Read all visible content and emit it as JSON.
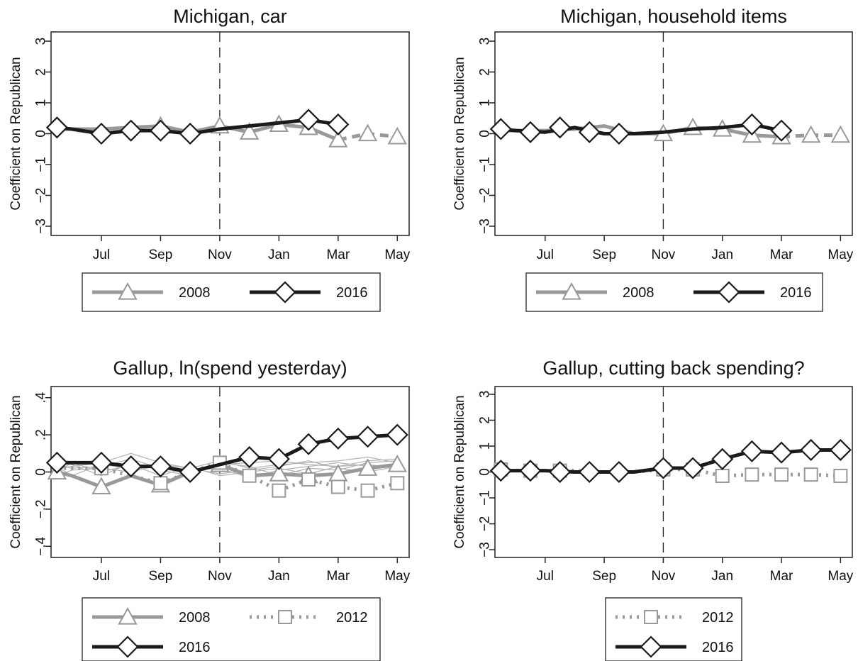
{
  "colors": {
    "gray": "#999999",
    "black": "#1a1a1a",
    "frame": "#222222",
    "faint": "#b3b3b3"
  },
  "chart_data": [
    {
      "type": "line",
      "title": "Michigan, car",
      "ylabel": "Coefficient on Republican",
      "x_tick_labels": [
        "Jul",
        "Sep",
        "Nov",
        "Jan",
        "Mar",
        "May"
      ],
      "x_ticks": [
        7,
        9,
        11,
        13,
        15,
        17
      ],
      "xlim": [
        5.3,
        17.4
      ],
      "y_ticks": [
        -3,
        -2,
        -1,
        0,
        1,
        2,
        3
      ],
      "y_tick_labels": [
        "−3",
        "−2",
        "−1",
        "0",
        "1",
        "2",
        "3"
      ],
      "ylim": [
        -3.3,
        3.3
      ],
      "election_line_x": 11,
      "series": [
        {
          "name": "2008",
          "style": "gray-triangle",
          "segments": [
            {
              "dashed": false,
              "x": [
                5.5,
                6,
                7,
                8,
                9,
                10,
                11,
                12,
                13,
                14,
                15
              ],
              "y": [
                0.15,
                0.15,
                0.15,
                0.2,
                0.25,
                0.05,
                0.25,
                0.05,
                0.3,
                0.2,
                -0.2
              ]
            },
            {
              "dashed": true,
              "x": [
                15,
                16,
                17
              ],
              "y": [
                -0.2,
                0.0,
                -0.1
              ]
            }
          ],
          "markers": {
            "x": [
              9,
              11,
              12,
              13,
              14,
              15,
              16,
              17
            ],
            "y": [
              0.25,
              0.25,
              0.05,
              0.3,
              0.2,
              -0.2,
              0.0,
              -0.1
            ]
          }
        },
        {
          "name": "2016",
          "style": "black-diamond",
          "segments": [
            {
              "dashed": false,
              "x": [
                5.5,
                6,
                7,
                8,
                9,
                10,
                11,
                12,
                13,
                14,
                15
              ],
              "y": [
                0.2,
                0.15,
                0.0,
                0.1,
                0.1,
                0.0,
                0.15,
                0.25,
                0.35,
                0.45,
                0.3
              ]
            }
          ],
          "markers": {
            "x": [
              5.5,
              7,
              8,
              9,
              10,
              14,
              15
            ],
            "y": [
              0.2,
              0.0,
              0.1,
              0.1,
              0.0,
              0.45,
              0.3
            ]
          }
        }
      ],
      "legend": [
        {
          "label": "2008",
          "style": "gray-triangle"
        },
        {
          "label": "2016",
          "style": "black-diamond"
        }
      ]
    },
    {
      "type": "line",
      "title": "Michigan, household items",
      "ylabel": "Coefficient on Republican",
      "x_tick_labels": [
        "Jul",
        "Sep",
        "Nov",
        "Jan",
        "Mar",
        "May"
      ],
      "x_ticks": [
        7,
        9,
        11,
        13,
        15,
        17
      ],
      "xlim": [
        5.3,
        17.4
      ],
      "y_ticks": [
        -3,
        -2,
        -1,
        0,
        1,
        2,
        3
      ],
      "y_tick_labels": [
        "−3",
        "−2",
        "−1",
        "0",
        "1",
        "2",
        "3"
      ],
      "ylim": [
        -3.3,
        3.3
      ],
      "election_line_x": 11,
      "series": [
        {
          "name": "2008",
          "style": "gray-triangle",
          "segments": [
            {
              "dashed": false,
              "x": [
                5.5,
                6,
                7,
                8,
                9,
                10,
                11,
                12,
                13,
                14,
                15
              ],
              "y": [
                0.1,
                0.1,
                0.1,
                0.15,
                0.25,
                0.0,
                0.0,
                0.2,
                0.15,
                -0.05,
                -0.1
              ]
            },
            {
              "dashed": true,
              "x": [
                15,
                16,
                17
              ],
              "y": [
                -0.1,
                -0.05,
                -0.05
              ]
            }
          ],
          "markers": {
            "x": [
              11,
              12,
              13,
              14,
              15,
              16,
              17
            ],
            "y": [
              0.0,
              0.2,
              0.15,
              -0.05,
              -0.1,
              -0.05,
              -0.05
            ]
          }
        },
        {
          "name": "2016",
          "style": "black-diamond",
          "segments": [
            {
              "dashed": false,
              "x": [
                5.5,
                6,
                7,
                8,
                9,
                10,
                11,
                12,
                13,
                14,
                15
              ],
              "y": [
                0.15,
                0.1,
                0.05,
                0.2,
                0.0,
                0.0,
                0.05,
                0.15,
                0.2,
                0.3,
                0.1
              ]
            }
          ],
          "markers": {
            "x": [
              5.5,
              6.5,
              7.5,
              8.5,
              9.5,
              14,
              15
            ],
            "y": [
              0.15,
              0.05,
              0.2,
              0.05,
              0.0,
              0.3,
              0.1
            ]
          }
        }
      ],
      "legend": [
        {
          "label": "2008",
          "style": "gray-triangle"
        },
        {
          "label": "2016",
          "style": "black-diamond"
        }
      ]
    },
    {
      "type": "line",
      "title": "Gallup, ln(spend yesterday)",
      "ylabel": "Coefficient on Republican",
      "x_tick_labels": [
        "Jul",
        "Sep",
        "Nov",
        "Jan",
        "Mar",
        "May"
      ],
      "x_ticks": [
        7,
        9,
        11,
        13,
        15,
        17
      ],
      "xlim": [
        5.3,
        17.4
      ],
      "y_ticks": [
        -0.4,
        -0.2,
        0,
        0.2,
        0.4
      ],
      "y_tick_labels": [
        "−.4",
        "−.2",
        "0",
        ".2",
        ".4"
      ],
      "ylim": [
        -0.46,
        0.46
      ],
      "election_line_x": 11,
      "background_lines": {
        "x": [
          5.5,
          6,
          7,
          8,
          9,
          10,
          11,
          12,
          13,
          14,
          15,
          16,
          17
        ],
        "ys": [
          [
            0.02,
            0.03,
            0.05,
            0.1,
            0.05,
            0.02,
            0.06,
            0.02,
            0.04,
            0.05,
            0.06,
            0.08,
            0.05
          ],
          [
            0.04,
            0.02,
            0.03,
            0.07,
            0.02,
            -0.01,
            0.04,
            0.05,
            0.06,
            0.04,
            0.03,
            0.06,
            0.07
          ],
          [
            0.0,
            0.05,
            0.0,
            0.04,
            -0.02,
            0.03,
            -0.02,
            0.0,
            0.02,
            -0.01,
            0.03,
            0.04,
            0.02
          ],
          [
            0.03,
            -0.02,
            0.04,
            0.02,
            0.03,
            0.01,
            0.02,
            -0.03,
            0.01,
            0.03,
            0.05,
            0.03,
            0.04
          ],
          [
            0.05,
            0.04,
            -0.02,
            0.05,
            0.01,
            -0.02,
            0.05,
            0.03,
            -0.02,
            0.02,
            0.01,
            0.05,
            0.06
          ],
          [
            -0.02,
            0.01,
            0.02,
            0.0,
            0.04,
            0.02,
            -0.01,
            0.01,
            0.03,
            0.06,
            0.02,
            0.0,
            0.03
          ]
        ]
      },
      "series": [
        {
          "name": "2008",
          "style": "gray-triangle",
          "segments": [
            {
              "dashed": false,
              "x": [
                5.5,
                6,
                7,
                8,
                9,
                10,
                11,
                12,
                13,
                14,
                15,
                16,
                17
              ],
              "y": [
                0.0,
                -0.02,
                -0.08,
                -0.02,
                -0.07,
                0.0,
                0.04,
                -0.02,
                -0.01,
                -0.02,
                -0.01,
                0.02,
                0.04
              ]
            }
          ],
          "markers": {
            "x": [
              5.5,
              7,
              9,
              11,
              13,
              14,
              15,
              16,
              17
            ],
            "y": [
              0.0,
              -0.08,
              -0.07,
              0.04,
              -0.01,
              -0.02,
              -0.01,
              0.02,
              0.04
            ]
          }
        },
        {
          "name": "2012",
          "style": "gray-square-dotted",
          "segments": [
            {
              "dashed": true,
              "x": [
                5.5,
                6,
                7,
                8,
                9,
                10,
                11,
                12,
                13,
                14,
                15,
                16,
                17
              ],
              "y": [
                0.02,
                0.02,
                0.02,
                -0.02,
                -0.06,
                0.0,
                0.05,
                -0.02,
                -0.1,
                -0.04,
                -0.08,
                -0.1,
                -0.06
              ]
            }
          ],
          "markers": {
            "x": [
              7,
              9,
              11,
              12,
              13,
              14,
              15,
              16,
              17
            ],
            "y": [
              0.02,
              -0.06,
              0.05,
              -0.02,
              -0.1,
              -0.04,
              -0.08,
              -0.1,
              -0.06
            ]
          }
        },
        {
          "name": "2016",
          "style": "black-diamond",
          "segments": [
            {
              "dashed": false,
              "x": [
                5.5,
                6,
                7,
                8,
                9,
                10,
                11,
                12,
                13,
                14,
                15,
                16,
                17
              ],
              "y": [
                0.05,
                0.05,
                0.05,
                0.03,
                0.03,
                0.0,
                0.04,
                0.08,
                0.07,
                0.15,
                0.18,
                0.19,
                0.2
              ]
            }
          ],
          "markers": {
            "x": [
              5.5,
              7,
              8,
              9,
              10,
              12,
              13,
              14,
              15,
              16,
              17
            ],
            "y": [
              0.05,
              0.05,
              0.03,
              0.03,
              0.0,
              0.08,
              0.07,
              0.15,
              0.18,
              0.19,
              0.2
            ]
          }
        }
      ],
      "legend": [
        {
          "label": "2008",
          "style": "gray-triangle"
        },
        {
          "label": "2012",
          "style": "gray-square-dotted"
        },
        {
          "label": "2016",
          "style": "black-diamond"
        }
      ]
    },
    {
      "type": "line",
      "title": "Gallup, cutting back spending?",
      "ylabel": "Coefficient on Republican",
      "x_tick_labels": [
        "Jul",
        "Sep",
        "Nov",
        "Jan",
        "Mar",
        "May"
      ],
      "x_ticks": [
        7,
        9,
        11,
        13,
        15,
        17
      ],
      "xlim": [
        5.3,
        17.4
      ],
      "y_ticks": [
        -3,
        -2,
        -1,
        0,
        1,
        2,
        3
      ],
      "y_tick_labels": [
        "−3",
        "−2",
        "−1",
        "0",
        "1",
        "2",
        "3"
      ],
      "ylim": [
        -3.3,
        3.3
      ],
      "election_line_x": 11,
      "series": [
        {
          "name": "2012",
          "style": "gray-square-dotted",
          "segments": [
            {
              "dashed": true,
              "x": [
                5.5,
                6,
                7,
                8,
                9,
                10,
                11,
                12,
                13,
                14,
                15,
                16,
                17
              ],
              "y": [
                0.1,
                0.05,
                0.05,
                0.05,
                0.0,
                0.0,
                0.1,
                0.1,
                -0.15,
                -0.1,
                -0.1,
                -0.1,
                -0.15
              ]
            }
          ],
          "markers": {
            "x": [
              5.5,
              6.5,
              7.5,
              11,
              12,
              13,
              14,
              15,
              16,
              17
            ],
            "y": [
              0.1,
              0.05,
              0.05,
              0.1,
              0.1,
              -0.15,
              -0.1,
              -0.1,
              -0.1,
              -0.15
            ]
          }
        },
        {
          "name": "2016",
          "style": "black-diamond",
          "segments": [
            {
              "dashed": false,
              "x": [
                5.5,
                6,
                7,
                8,
                9,
                10,
                11,
                12,
                13,
                14,
                15,
                16,
                17
              ],
              "y": [
                0.05,
                0.05,
                0.05,
                0.0,
                0.0,
                0.0,
                0.15,
                0.15,
                0.5,
                0.8,
                0.75,
                0.85,
                0.85
              ]
            }
          ],
          "markers": {
            "x": [
              5.5,
              6.5,
              7.5,
              8.5,
              9.5,
              11,
              12,
              13,
              14,
              15,
              16,
              17
            ],
            "y": [
              0.05,
              0.05,
              0.0,
              0.0,
              0.0,
              0.15,
              0.15,
              0.5,
              0.8,
              0.75,
              0.85,
              0.85
            ]
          }
        }
      ],
      "legend": [
        {
          "label": "2012",
          "style": "gray-square-dotted"
        },
        {
          "label": "2016",
          "style": "black-diamond"
        }
      ]
    }
  ]
}
